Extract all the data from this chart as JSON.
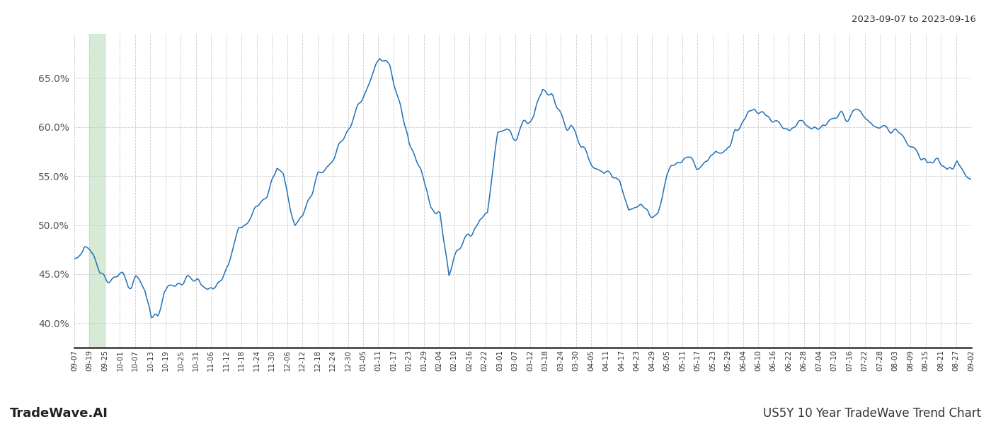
{
  "title_top_right": "2023-09-07 to 2023-09-16",
  "title_bottom_left": "TradeWave.AI",
  "title_bottom_right": "US5Y 10 Year TradeWave Trend Chart",
  "line_color": "#2370b8",
  "highlight_color": "#d6ead6",
  "background_color": "#ffffff",
  "grid_color": "#cccccc",
  "ylim": [
    0.375,
    0.695
  ],
  "yticks": [
    0.4,
    0.45,
    0.5,
    0.55,
    0.6,
    0.65
  ],
  "ytick_labels": [
    "40.0%",
    "45.0%",
    "50.0%",
    "55.0%",
    "60.0%",
    "65.0%"
  ],
  "highlight_xstart_idx": 1,
  "highlight_xend_idx": 2,
  "x_labels": [
    "09-07",
    "09-19",
    "09-25",
    "10-01",
    "10-07",
    "10-13",
    "10-19",
    "10-25",
    "10-31",
    "11-06",
    "11-12",
    "11-18",
    "11-24",
    "11-30",
    "12-06",
    "12-12",
    "12-18",
    "12-24",
    "12-30",
    "01-05",
    "01-11",
    "01-17",
    "01-23",
    "01-29",
    "02-04",
    "02-10",
    "02-16",
    "02-22",
    "03-01",
    "03-07",
    "03-12",
    "03-18",
    "03-24",
    "03-30",
    "04-05",
    "04-11",
    "04-17",
    "04-23",
    "04-29",
    "05-05",
    "05-11",
    "05-17",
    "05-23",
    "05-29",
    "06-04",
    "06-10",
    "06-16",
    "06-22",
    "06-28",
    "07-04",
    "07-10",
    "07-16",
    "07-22",
    "07-28",
    "08-03",
    "08-09",
    "08-15",
    "08-21",
    "08-27",
    "09-02"
  ],
  "waypoints_x": [
    0,
    8,
    15,
    20,
    28,
    35,
    42,
    48,
    55,
    60,
    65,
    70,
    80,
    88,
    100,
    108,
    115,
    120,
    128,
    135,
    142,
    150,
    158,
    163,
    172,
    178,
    183,
    190,
    198,
    207,
    215,
    222,
    230,
    238,
    246,
    254,
    261,
    270,
    278,
    285,
    292,
    298,
    307,
    315,
    322,
    330,
    337,
    345,
    352,
    358,
    365,
    372,
    380,
    387,
    395,
    402,
    410,
    418,
    425,
    432,
    440,
    448,
    455,
    462,
    470,
    478,
    485,
    492,
    500,
    508,
    515,
    522,
    530,
    537,
    545,
    552,
    560,
    568,
    575,
    582,
    590,
    598,
    605,
    613,
    620,
    628,
    635,
    643,
    650,
    658,
    665,
    673,
    680,
    688,
    695,
    700
  ],
  "waypoints_y": [
    0.46,
    0.475,
    0.47,
    0.452,
    0.448,
    0.455,
    0.44,
    0.445,
    0.435,
    0.406,
    0.41,
    0.432,
    0.44,
    0.445,
    0.44,
    0.433,
    0.445,
    0.46,
    0.498,
    0.508,
    0.52,
    0.53,
    0.553,
    0.55,
    0.503,
    0.51,
    0.525,
    0.555,
    0.56,
    0.582,
    0.6,
    0.622,
    0.644,
    0.668,
    0.66,
    0.62,
    0.578,
    0.555,
    0.52,
    0.508,
    0.445,
    0.47,
    0.492,
    0.502,
    0.515,
    0.59,
    0.6,
    0.595,
    0.608,
    0.615,
    0.64,
    0.635,
    0.617,
    0.605,
    0.575,
    0.565,
    0.551,
    0.556,
    0.551,
    0.512,
    0.516,
    0.512,
    0.516,
    0.558,
    0.567,
    0.568,
    0.558,
    0.565,
    0.576,
    0.575,
    0.6,
    0.608,
    0.615,
    0.612,
    0.606,
    0.6,
    0.598,
    0.604,
    0.598,
    0.596,
    0.608,
    0.613,
    0.612,
    0.614,
    0.605,
    0.6,
    0.597,
    0.594,
    0.58,
    0.575,
    0.567,
    0.572,
    0.563,
    0.566,
    0.554,
    0.55
  ]
}
